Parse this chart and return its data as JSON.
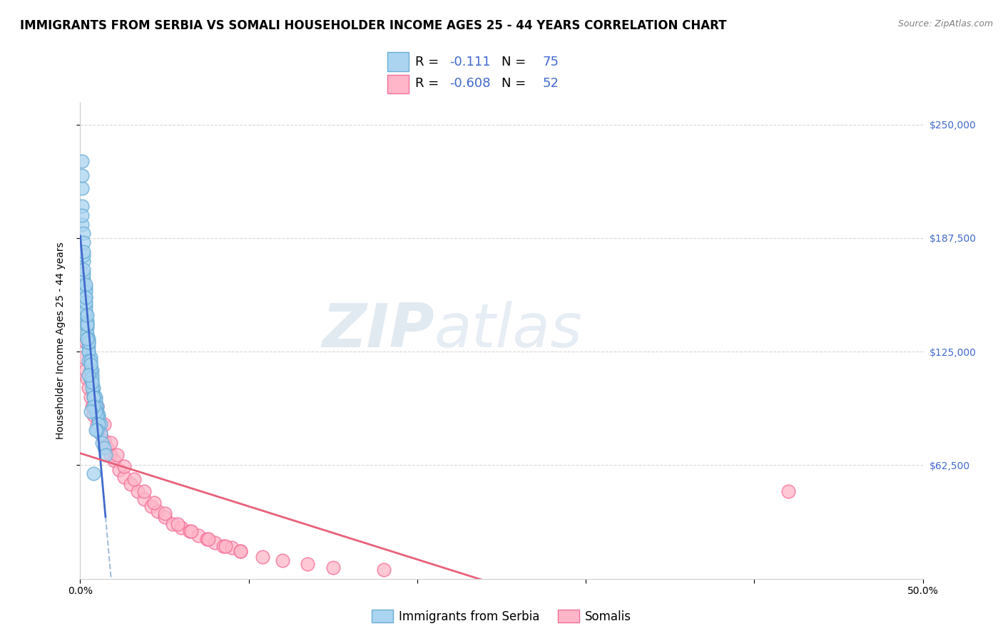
{
  "title": "IMMIGRANTS FROM SERBIA VS SOMALI HOUSEHOLDER INCOME AGES 25 - 44 YEARS CORRELATION CHART",
  "source": "Source: ZipAtlas.com",
  "ylabel": "Householder Income Ages 25 - 44 years",
  "xlim": [
    0.0,
    0.5
  ],
  "ylim": [
    0,
    262500
  ],
  "yticks": [
    62500,
    125000,
    187500,
    250000
  ],
  "ytick_labels": [
    "$62,500",
    "$125,000",
    "$187,500",
    "$250,000"
  ],
  "xticks": [
    0.0,
    0.1,
    0.2,
    0.3,
    0.4,
    0.5
  ],
  "xtick_labels": [
    "0.0%",
    "",
    "",
    "",
    "",
    "50.0%"
  ],
  "series1_name": "Immigrants from Serbia",
  "series1_R": "-0.111",
  "series1_N": "75",
  "series1_color": "#aad4f0",
  "series1_edge": "#6baed6",
  "series2_name": "Somalis",
  "series2_R": "-0.608",
  "series2_N": "52",
  "series2_color": "#ffb6c8",
  "series2_edge": "#f4709a",
  "series1_x": [
    0.001,
    0.001,
    0.001,
    0.002,
    0.002,
    0.002,
    0.003,
    0.003,
    0.003,
    0.003,
    0.004,
    0.004,
    0.004,
    0.005,
    0.005,
    0.005,
    0.006,
    0.006,
    0.007,
    0.007,
    0.007,
    0.008,
    0.008,
    0.009,
    0.009,
    0.01,
    0.01,
    0.011,
    0.011,
    0.012,
    0.001,
    0.002,
    0.002,
    0.003,
    0.003,
    0.004,
    0.004,
    0.005,
    0.005,
    0.006,
    0.006,
    0.007,
    0.008,
    0.009,
    0.01,
    0.011,
    0.012,
    0.013,
    0.014,
    0.015,
    0.001,
    0.002,
    0.003,
    0.004,
    0.005,
    0.006,
    0.007,
    0.008,
    0.009,
    0.01,
    0.002,
    0.003,
    0.004,
    0.005,
    0.006,
    0.007,
    0.008,
    0.009,
    0.001,
    0.002,
    0.003,
    0.004,
    0.005,
    0.006,
    0.008
  ],
  "series1_y": [
    215000,
    205000,
    195000,
    190000,
    175000,
    165000,
    160000,
    155000,
    150000,
    145000,
    142000,
    138000,
    135000,
    132000,
    128000,
    125000,
    122000,
    118000,
    115000,
    112000,
    108000,
    105000,
    102000,
    100000,
    98000,
    95000,
    92000,
    90000,
    88000,
    85000,
    230000,
    178000,
    168000,
    158000,
    148000,
    140000,
    132000,
    125000,
    120000,
    115000,
    110000,
    105000,
    100000,
    95000,
    90000,
    85000,
    80000,
    75000,
    72000,
    68000,
    200000,
    170000,
    152000,
    140000,
    130000,
    120000,
    110000,
    100000,
    92000,
    82000,
    185000,
    162000,
    145000,
    130000,
    118000,
    108000,
    95000,
    82000,
    222000,
    180000,
    155000,
    132000,
    112000,
    92000,
    58000
  ],
  "series2_x": [
    0.002,
    0.003,
    0.004,
    0.005,
    0.006,
    0.007,
    0.008,
    0.01,
    0.012,
    0.014,
    0.016,
    0.018,
    0.02,
    0.023,
    0.026,
    0.03,
    0.034,
    0.038,
    0.042,
    0.046,
    0.05,
    0.055,
    0.06,
    0.065,
    0.07,
    0.075,
    0.08,
    0.085,
    0.09,
    0.095,
    0.003,
    0.006,
    0.01,
    0.014,
    0.018,
    0.022,
    0.026,
    0.032,
    0.038,
    0.044,
    0.05,
    0.058,
    0.066,
    0.076,
    0.086,
    0.095,
    0.108,
    0.12,
    0.135,
    0.15,
    0.18,
    0.42
  ],
  "series2_y": [
    122000,
    115000,
    110000,
    105000,
    100000,
    95000,
    90000,
    85000,
    80000,
    76000,
    72000,
    68000,
    65000,
    60000,
    56000,
    52000,
    48000,
    44000,
    40000,
    37000,
    34000,
    30000,
    28000,
    26000,
    24000,
    22000,
    20000,
    18000,
    17000,
    15000,
    130000,
    110000,
    95000,
    85000,
    75000,
    68000,
    62000,
    55000,
    48000,
    42000,
    36000,
    30000,
    26000,
    22000,
    18000,
    15000,
    12000,
    10000,
    8000,
    6000,
    5000,
    48000
  ],
  "watermark_zip": "ZIP",
  "watermark_atlas": "atlas",
  "legend_box_color1": "#aad4f0",
  "legend_box_color2": "#ffb6c8",
  "value_color": "#4169cd",
  "regression_line1_color": "#4169cd",
  "regression_line2_color": "#e8607a",
  "dashed_line_color": "#9ab8d8",
  "grid_color": "#d8d8d8",
  "ytick_color": "#4169cd",
  "title_fontsize": 12,
  "axis_label_fontsize": 10,
  "tick_fontsize": 10
}
